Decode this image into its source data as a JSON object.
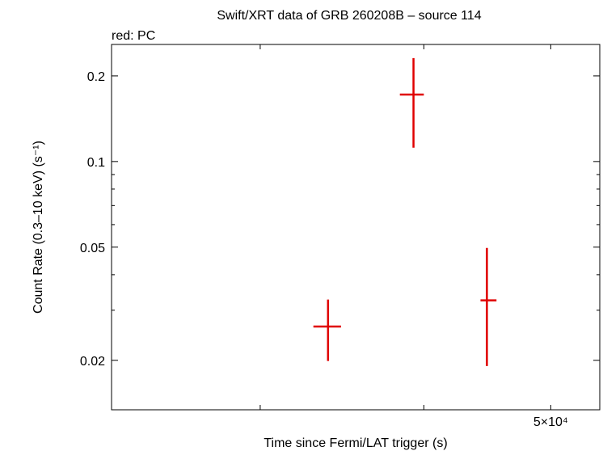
{
  "chart_data": {
    "type": "errorbar",
    "title": "Swift/XRT data of GRB 260208B – source 114",
    "annotation": "red: PC",
    "x_label": "Time since Fermi/LAT trigger (s)",
    "y_label": "Count Rate (0.3–10 keV) (s⁻¹)",
    "x_log": true,
    "y_log": true,
    "xlim": [
      23100,
      54500
    ],
    "ylim": [
      0.0134,
      0.258
    ],
    "xticks": [
      {
        "value": 30000,
        "label": null
      },
      {
        "value": 40000,
        "label": null
      },
      {
        "value": 50000,
        "label": "5×10⁴"
      }
    ],
    "yticks": [
      {
        "value": 0.02,
        "label": "0.02"
      },
      {
        "value": 0.03,
        "label": null
      },
      {
        "value": 0.04,
        "label": null
      },
      {
        "value": 0.05,
        "label": "0.05"
      },
      {
        "value": 0.06,
        "label": null
      },
      {
        "value": 0.07,
        "label": null
      },
      {
        "value": 0.08,
        "label": null
      },
      {
        "value": 0.09,
        "label": null
      },
      {
        "value": 0.1,
        "label": "0.1"
      },
      {
        "value": 0.2,
        "label": "0.2"
      }
    ],
    "series": [
      {
        "color": "#e00000",
        "x": [
          33800,
          39280,
          44690
        ],
        "x_low": [
          32940,
          38350,
          44190
        ],
        "x_high": [
          34580,
          40000,
          45450
        ],
        "values": [
          0.0263,
          0.172,
          0.0325
        ],
        "y_low": [
          0.0199,
          0.1118,
          0.0191
        ],
        "y_high": [
          0.0327,
          0.231,
          0.0497
        ]
      }
    ]
  }
}
